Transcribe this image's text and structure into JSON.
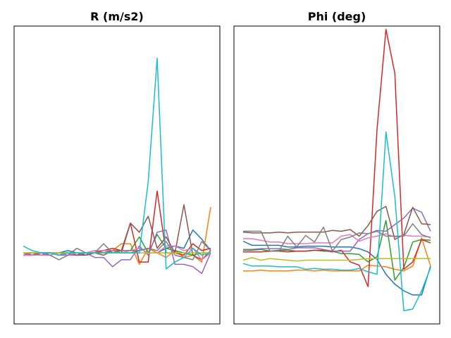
{
  "chart_data": [
    {
      "type": "line",
      "title": "R (m/s2)",
      "x": [
        0,
        1,
        2,
        3,
        4,
        5,
        6,
        7,
        8,
        9,
        10,
        11,
        12,
        13,
        14,
        15,
        16,
        17,
        18,
        19,
        20,
        21
      ],
      "ylim": [
        -0.3,
        1.0
      ],
      "grid": false,
      "ticks_visible": false,
      "series": [
        {
          "color": "#1f77b4",
          "values": [
            0.01,
            0.01,
            0.01,
            0.01,
            0.01,
            0.02,
            0.01,
            0.0,
            0.01,
            0.02,
            0.02,
            0.01,
            0.01,
            0.02,
            0.03,
            0.01,
            0.03,
            0.04,
            0.03,
            0.11,
            0.07,
            0.02
          ]
        },
        {
          "color": "#ff7f0e",
          "values": [
            0.0,
            0.0,
            0.01,
            0.01,
            0.01,
            0.0,
            0.01,
            0.01,
            0.02,
            0.01,
            0.02,
            0.05,
            0.05,
            -0.04,
            0.03,
            0.01,
            -0.01,
            0.02,
            -0.01,
            0.0,
            -0.03,
            0.21
          ]
        },
        {
          "color": "#2ca02c",
          "values": [
            0.0,
            0.0,
            0.01,
            0.0,
            0.01,
            0.01,
            0.0,
            0.01,
            0.01,
            0.01,
            0.02,
            0.02,
            0.02,
            0.08,
            0.01,
            0.09,
            0.03,
            0.02,
            0.01,
            0.0,
            0.01,
            0.01
          ]
        },
        {
          "color": "#d62728",
          "values": [
            0.01,
            0.0,
            0.01,
            0.01,
            0.01,
            0.01,
            0.0,
            0.01,
            0.01,
            0.02,
            0.03,
            0.02,
            0.14,
            -0.03,
            -0.03,
            0.28,
            0.01,
            0.01,
            0.0,
            0.05,
            0.02,
            0.03
          ]
        },
        {
          "color": "#9467bd",
          "values": [
            0.0,
            0.01,
            0.0,
            0.01,
            0.0,
            0.0,
            0.0,
            0.01,
            -0.01,
            -0.01,
            -0.05,
            -0.02,
            -0.02,
            0.04,
            0.0,
            0.1,
            0.11,
            -0.04,
            -0.04,
            -0.05,
            -0.08,
            0.01
          ]
        },
        {
          "color": "#8c564b",
          "values": [
            0.0,
            0.0,
            0.01,
            0.01,
            0.0,
            0.01,
            0.0,
            0.0,
            0.01,
            0.0,
            0.02,
            0.01,
            0.14,
            0.1,
            0.17,
            0.03,
            0.08,
            0.01,
            0.22,
            -0.0,
            -0.02,
            0.02
          ]
        },
        {
          "color": "#e377c2",
          "values": [
            0.0,
            0.0,
            0.0,
            0.0,
            0.01,
            0.0,
            0.01,
            0.01,
            0.02,
            0.02,
            0.02,
            0.01,
            0.02,
            0.03,
            0.01,
            0.01,
            0.04,
            0.04,
            0.02,
            0.03,
            -0.02,
            0.01
          ]
        },
        {
          "color": "#7f7f7f",
          "values": [
            0.01,
            0.01,
            0.01,
            0.0,
            -0.02,
            0.0,
            0.03,
            0.01,
            0.01,
            0.05,
            0.01,
            0.02,
            0.02,
            0.02,
            0.03,
            0.02,
            0.06,
            0.0,
            -0.01,
            -0.02,
            0.06,
            0.02
          ]
        },
        {
          "color": "#bcbd22",
          "values": [
            0.01,
            0.01,
            0.01,
            0.01,
            0.01,
            0.01,
            0.01,
            0.01,
            0.01,
            0.01,
            0.01,
            0.01,
            0.01,
            0.01,
            0.01,
            0.01,
            0.01,
            0.01,
            0.01,
            0.01,
            0.01,
            0.01
          ]
        },
        {
          "color": "#17becf",
          "values": [
            0.04,
            0.02,
            0.01,
            0.01,
            0.0,
            0.01,
            0.01,
            0.01,
            0.01,
            0.01,
            0.01,
            0.01,
            0.01,
            0.01,
            0.32,
            0.86,
            -0.06,
            -0.03,
            -0.01,
            0.03,
            0.0,
            0.01
          ]
        }
      ]
    },
    {
      "type": "line",
      "title": "Phi (deg)",
      "x": [
        0,
        1,
        2,
        3,
        4,
        5,
        6,
        7,
        8,
        9,
        10,
        11,
        12,
        13,
        14,
        15,
        16,
        17,
        18,
        19,
        20,
        21
      ],
      "ylim": [
        -1.0,
        2.6
      ],
      "grid": false,
      "ticks_visible": false,
      "series": [
        {
          "color": "#1f77b4",
          "values": [
            0.0,
            -0.05,
            -0.05,
            -0.05,
            -0.05,
            -0.07,
            -0.07,
            -0.06,
            -0.06,
            -0.06,
            -0.07,
            -0.07,
            -0.07,
            -0.09,
            -0.13,
            -0.22,
            -0.4,
            -0.52,
            -0.6,
            -0.65,
            -0.65,
            -0.3
          ]
        },
        {
          "color": "#ff7f0e",
          "values": [
            -0.36,
            -0.36,
            -0.35,
            -0.36,
            -0.36,
            -0.36,
            -0.35,
            -0.35,
            -0.36,
            -0.35,
            -0.36,
            -0.36,
            -0.36,
            -0.36,
            -0.29,
            -0.3,
            -0.31,
            -0.34,
            -0.36,
            -0.3,
            0.04,
            -0.3
          ]
        },
        {
          "color": "#2ca02c",
          "values": [
            -0.11,
            -0.11,
            -0.1,
            -0.12,
            -0.11,
            -0.11,
            -0.12,
            -0.12,
            -0.11,
            -0.12,
            -0.12,
            -0.15,
            -0.15,
            -0.16,
            -0.25,
            -0.19,
            0.25,
            -0.47,
            -0.32,
            -0.01,
            0.02,
            0.01
          ]
        },
        {
          "color": "#d62728",
          "values": [
            -0.13,
            -0.13,
            -0.13,
            -0.12,
            -0.12,
            -0.13,
            -0.12,
            -0.12,
            -0.11,
            -0.11,
            -0.13,
            -0.11,
            -0.25,
            -0.29,
            -0.55,
            1.35,
            2.56,
            2.03,
            -0.34,
            -0.25,
            0.02,
            -0.02
          ]
        },
        {
          "color": "#9467bd",
          "values": [
            -0.1,
            -0.1,
            -0.09,
            -0.09,
            -0.09,
            -0.1,
            -0.08,
            -0.08,
            -0.08,
            -0.1,
            -0.12,
            -0.12,
            -0.12,
            0.02,
            0.09,
            0.13,
            0.12,
            0.2,
            0.28,
            0.4,
            0.35,
            0.12
          ]
        },
        {
          "color": "#8c564b",
          "values": [
            0.11,
            0.1,
            0.1,
            0.1,
            0.11,
            0.1,
            0.11,
            0.11,
            0.11,
            0.11,
            0.13,
            0.12,
            0.14,
            0.06,
            0.19,
            0.36,
            0.42,
            0.02,
            0.08,
            0.41,
            0.21,
            0.2
          ]
        },
        {
          "color": "#e377c2",
          "values": [
            0.03,
            0.03,
            0.01,
            -0.01,
            -0.01,
            -0.03,
            -0.03,
            -0.03,
            -0.02,
            -0.02,
            -0.02,
            0.06,
            0.08,
            0.0,
            0.04,
            0.06,
            0.09,
            0.05,
            0.07,
            0.06,
            0.06,
            0.05
          ]
        },
        {
          "color": "#7f7f7f",
          "values": [
            0.12,
            0.12,
            0.12,
            -0.12,
            -0.12,
            0.06,
            -0.07,
            0.07,
            -0.01,
            0.17,
            -0.12,
            0.02,
            0.05,
            0.1,
            0.09,
            0.12,
            0.06,
            0.06,
            0.06,
            0.21,
            0.08,
            0.04
          ]
        },
        {
          "color": "#bcbd22",
          "values": [
            -0.23,
            -0.2,
            -0.23,
            -0.21,
            -0.22,
            -0.23,
            -0.24,
            -0.23,
            -0.23,
            -0.23,
            -0.23,
            -0.23,
            -0.23,
            -0.22,
            -0.21,
            -0.21,
            -0.21,
            -0.21,
            -0.21,
            -0.21,
            -0.21,
            -0.21
          ]
        },
        {
          "color": "#17becf",
          "values": [
            -0.27,
            -0.3,
            -0.3,
            -0.3,
            -0.31,
            -0.31,
            -0.31,
            -0.34,
            -0.33,
            -0.34,
            -0.34,
            -0.35,
            -0.35,
            -0.33,
            -0.37,
            -0.4,
            1.32,
            0.54,
            -0.84,
            -0.82,
            -0.6,
            -0.32
          ]
        }
      ]
    }
  ]
}
